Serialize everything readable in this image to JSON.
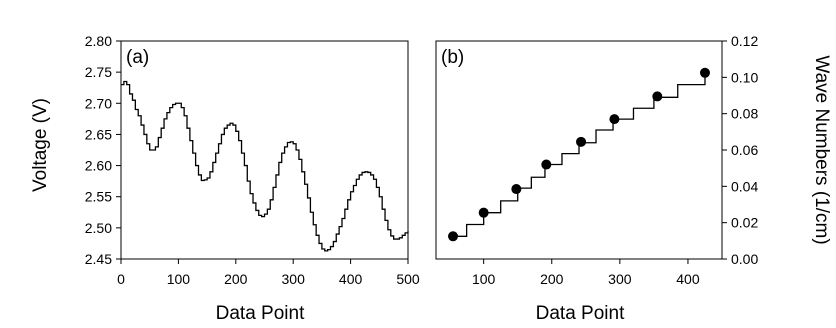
{
  "chart_data": [
    {
      "type": "line",
      "panel_label": "(a)",
      "xlabel": "Data Point",
      "ylabel": "Voltage (V)",
      "xlim": [
        0,
        500
      ],
      "ylim": [
        2.45,
        2.8
      ],
      "xticks": [
        "0",
        "100",
        "200",
        "300",
        "400",
        "500"
      ],
      "yticks": [
        "2.45",
        "2.50",
        "2.55",
        "2.60",
        "2.65",
        "2.70",
        "2.75",
        "2.80"
      ],
      "grid": false,
      "color": "#000000",
      "series": [
        {
          "x": [
            0,
            5,
            10,
            15,
            20,
            25,
            30,
            35,
            40,
            45,
            50,
            55,
            60,
            65,
            70,
            75,
            80,
            85,
            90,
            95,
            100,
            105,
            110,
            115,
            120,
            125,
            130,
            135,
            140,
            145,
            150,
            155,
            160,
            165,
            170,
            175,
            180,
            185,
            190,
            195,
            200,
            205,
            210,
            215,
            220,
            225,
            230,
            235,
            240,
            245,
            250,
            255,
            260,
            265,
            270,
            275,
            280,
            285,
            290,
            295,
            300,
            305,
            310,
            315,
            320,
            325,
            330,
            335,
            340,
            345,
            350,
            355,
            360,
            365,
            370,
            375,
            380,
            385,
            390,
            395,
            400,
            405,
            410,
            415,
            420,
            425,
            430,
            435,
            440,
            445,
            450,
            455,
            460,
            465,
            470,
            475,
            480,
            485,
            490,
            495,
            500
          ],
          "y": [
            2.73,
            2.735,
            2.73,
            2.715,
            2.705,
            2.69,
            2.68,
            2.665,
            2.65,
            2.635,
            2.625,
            2.625,
            2.63,
            2.645,
            2.66,
            2.675,
            2.685,
            2.693,
            2.698,
            2.7,
            2.7,
            2.693,
            2.68,
            2.66,
            2.64,
            2.62,
            2.6,
            2.585,
            2.576,
            2.577,
            2.58,
            2.59,
            2.605,
            2.62,
            2.635,
            2.65,
            2.66,
            2.665,
            2.668,
            2.665,
            2.655,
            2.64,
            2.62,
            2.6,
            2.575,
            2.555,
            2.54,
            2.528,
            2.52,
            2.518,
            2.522,
            2.53,
            2.545,
            2.565,
            2.585,
            2.605,
            2.62,
            2.63,
            2.637,
            2.638,
            2.635,
            2.625,
            2.61,
            2.59,
            2.57,
            2.548,
            2.525,
            2.505,
            2.488,
            2.475,
            2.466,
            2.463,
            2.465,
            2.47,
            2.478,
            2.49,
            2.502,
            2.515,
            2.53,
            2.545,
            2.558,
            2.568,
            2.578,
            2.585,
            2.589,
            2.59,
            2.589,
            2.585,
            2.578,
            2.565,
            2.55,
            2.53,
            2.512,
            2.497,
            2.487,
            2.482,
            2.482,
            2.484,
            2.488,
            2.492,
            2.495
          ]
        }
      ]
    },
    {
      "type": "line",
      "panel_label": "(b)",
      "xlabel": "Data Point",
      "ylabel": "Wave Numbers (1/cm)",
      "xlim": [
        30,
        450
      ],
      "ylim": [
        0.0,
        0.12
      ],
      "xticks": [
        "100",
        "200",
        "300",
        "400"
      ],
      "yticks": [
        "0.00",
        "0.02",
        "0.04",
        "0.06",
        "0.08",
        "0.10",
        "0.12"
      ],
      "grid": false,
      "color": "#000000",
      "series": [
        {
          "x": [
            55,
            75,
            100,
            125,
            150,
            170,
            190,
            215,
            240,
            265,
            290,
            320,
            350,
            385,
            425
          ],
          "y": [
            0.0125,
            0.019,
            0.0255,
            0.032,
            0.039,
            0.045,
            0.052,
            0.058,
            0.064,
            0.071,
            0.077,
            0.083,
            0.089,
            0.096,
            0.1025
          ]
        },
        {
          "x": [
            55,
            100,
            148,
            192,
            243,
            292,
            355,
            425
          ],
          "y": [
            0.0125,
            0.0255,
            0.0385,
            0.052,
            0.0645,
            0.077,
            0.0895,
            0.1025
          ],
          "marker": "circle"
        }
      ]
    }
  ]
}
